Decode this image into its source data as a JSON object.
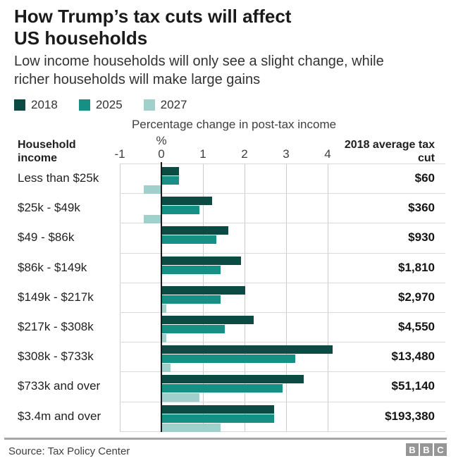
{
  "header": {
    "title_line1": "How Trump’s tax cuts will affect",
    "title_line2": "US households",
    "subtitle_line1": "Low income households will only see a slight change, while",
    "subtitle_line2": "richer households will make large gains"
  },
  "legend": [
    {
      "label": "2018",
      "color": "#0c4a44"
    },
    {
      "label": "2025",
      "color": "#169084"
    },
    {
      "label": "2027",
      "color": "#9fd0cc"
    }
  ],
  "chart_data": {
    "type": "bar",
    "orientation": "horizontal",
    "title": "Percentage change in post-tax income",
    "unit_label": "%",
    "left_header": "Household income",
    "right_header": "2018 average tax cut",
    "x_ticks": [
      -1,
      0,
      1,
      2,
      3,
      4
    ],
    "xlim": [
      -1,
      4.5
    ],
    "grid": true,
    "legend_position": "top",
    "categories": [
      "Less than $25k",
      "$25k - $49k",
      "$49 - $86k",
      "$86k - $149k",
      "$149k - $217k",
      "$217k - $308k",
      "$308k - $733k",
      "$733k and over",
      "$3.4m and over"
    ],
    "series": [
      {
        "name": "2018",
        "color": "#0c4a44",
        "values": [
          0.4,
          1.2,
          1.6,
          1.9,
          2.0,
          2.2,
          4.1,
          3.4,
          2.7
        ]
      },
      {
        "name": "2025",
        "color": "#169084",
        "values": [
          0.4,
          0.9,
          1.3,
          1.4,
          1.4,
          1.5,
          3.2,
          2.9,
          2.7
        ]
      },
      {
        "name": "2027",
        "color": "#9fd0cc",
        "values": [
          -0.4,
          -0.4,
          0,
          0,
          0.1,
          0.1,
          0.2,
          0.9,
          1.4
        ]
      }
    ],
    "avg_tax_cut_values": [
      "$60",
      "$360",
      "$930",
      "$1,810",
      "$2,970",
      "$4,550",
      "$13,480",
      "$51,140",
      "$193,380"
    ]
  },
  "footer": {
    "source": "Source: Tax Policy Center",
    "logo_blocks": [
      "B",
      "B",
      "C"
    ]
  }
}
